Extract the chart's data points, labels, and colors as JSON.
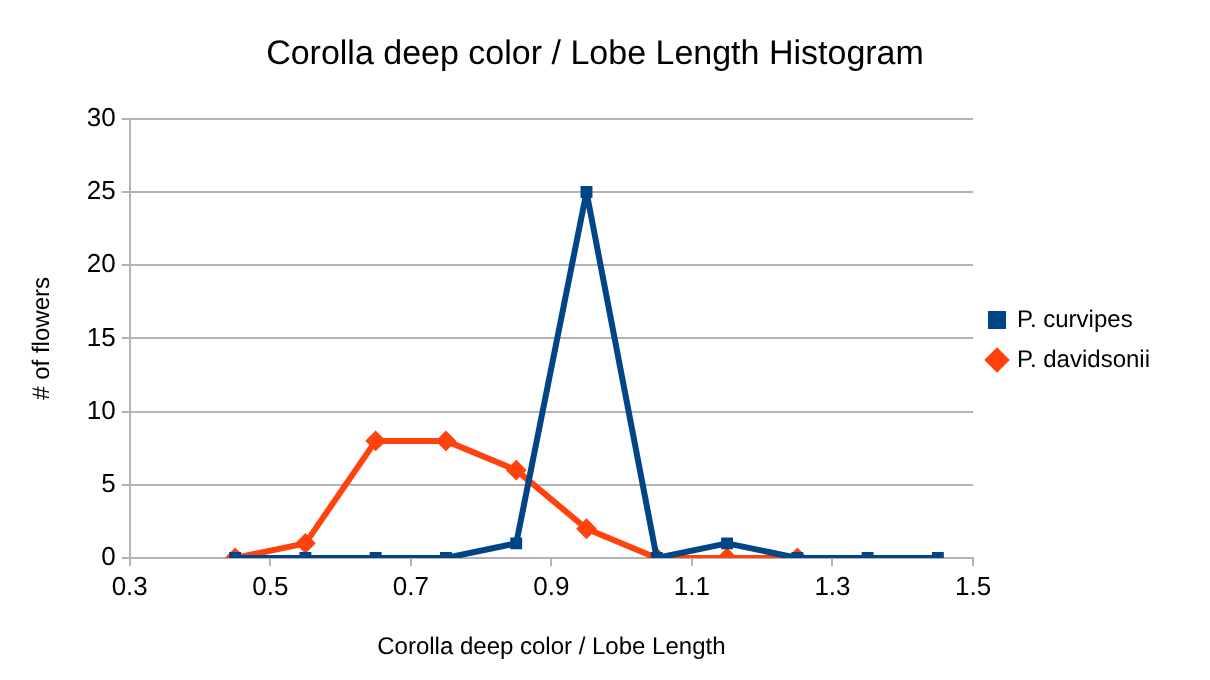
{
  "chart_data": {
    "type": "line",
    "title": "Corolla deep color / Lobe Length Histogram",
    "xlabel": "Corolla deep color / Lobe Length",
    "ylabel": "# of flowers",
    "xlim": [
      0.3,
      1.5
    ],
    "xticks": [
      0.3,
      0.5,
      0.7,
      0.9,
      1.1,
      1.3,
      1.5
    ],
    "ylim": [
      0,
      30
    ],
    "yticks": [
      0,
      5,
      10,
      15,
      20,
      25,
      30
    ],
    "grid": "y",
    "legend": "right",
    "series": [
      {
        "name": "P. curvipes",
        "color": "#004586",
        "marker": "square",
        "x": [
          0.45,
          0.55,
          0.65,
          0.75,
          0.85,
          0.95,
          1.05,
          1.15,
          1.25,
          1.35,
          1.45
        ],
        "values": [
          0,
          0,
          0,
          0,
          1,
          25,
          0,
          1,
          0,
          0,
          0
        ]
      },
      {
        "name": "P. davidsonii",
        "color": "#ff420e",
        "marker": "diamond",
        "x": [
          0.45,
          0.55,
          0.65,
          0.75,
          0.85,
          0.95,
          1.05,
          1.15,
          1.25
        ],
        "values": [
          0,
          1,
          8,
          8,
          6,
          2,
          0,
          0,
          0
        ]
      }
    ]
  }
}
